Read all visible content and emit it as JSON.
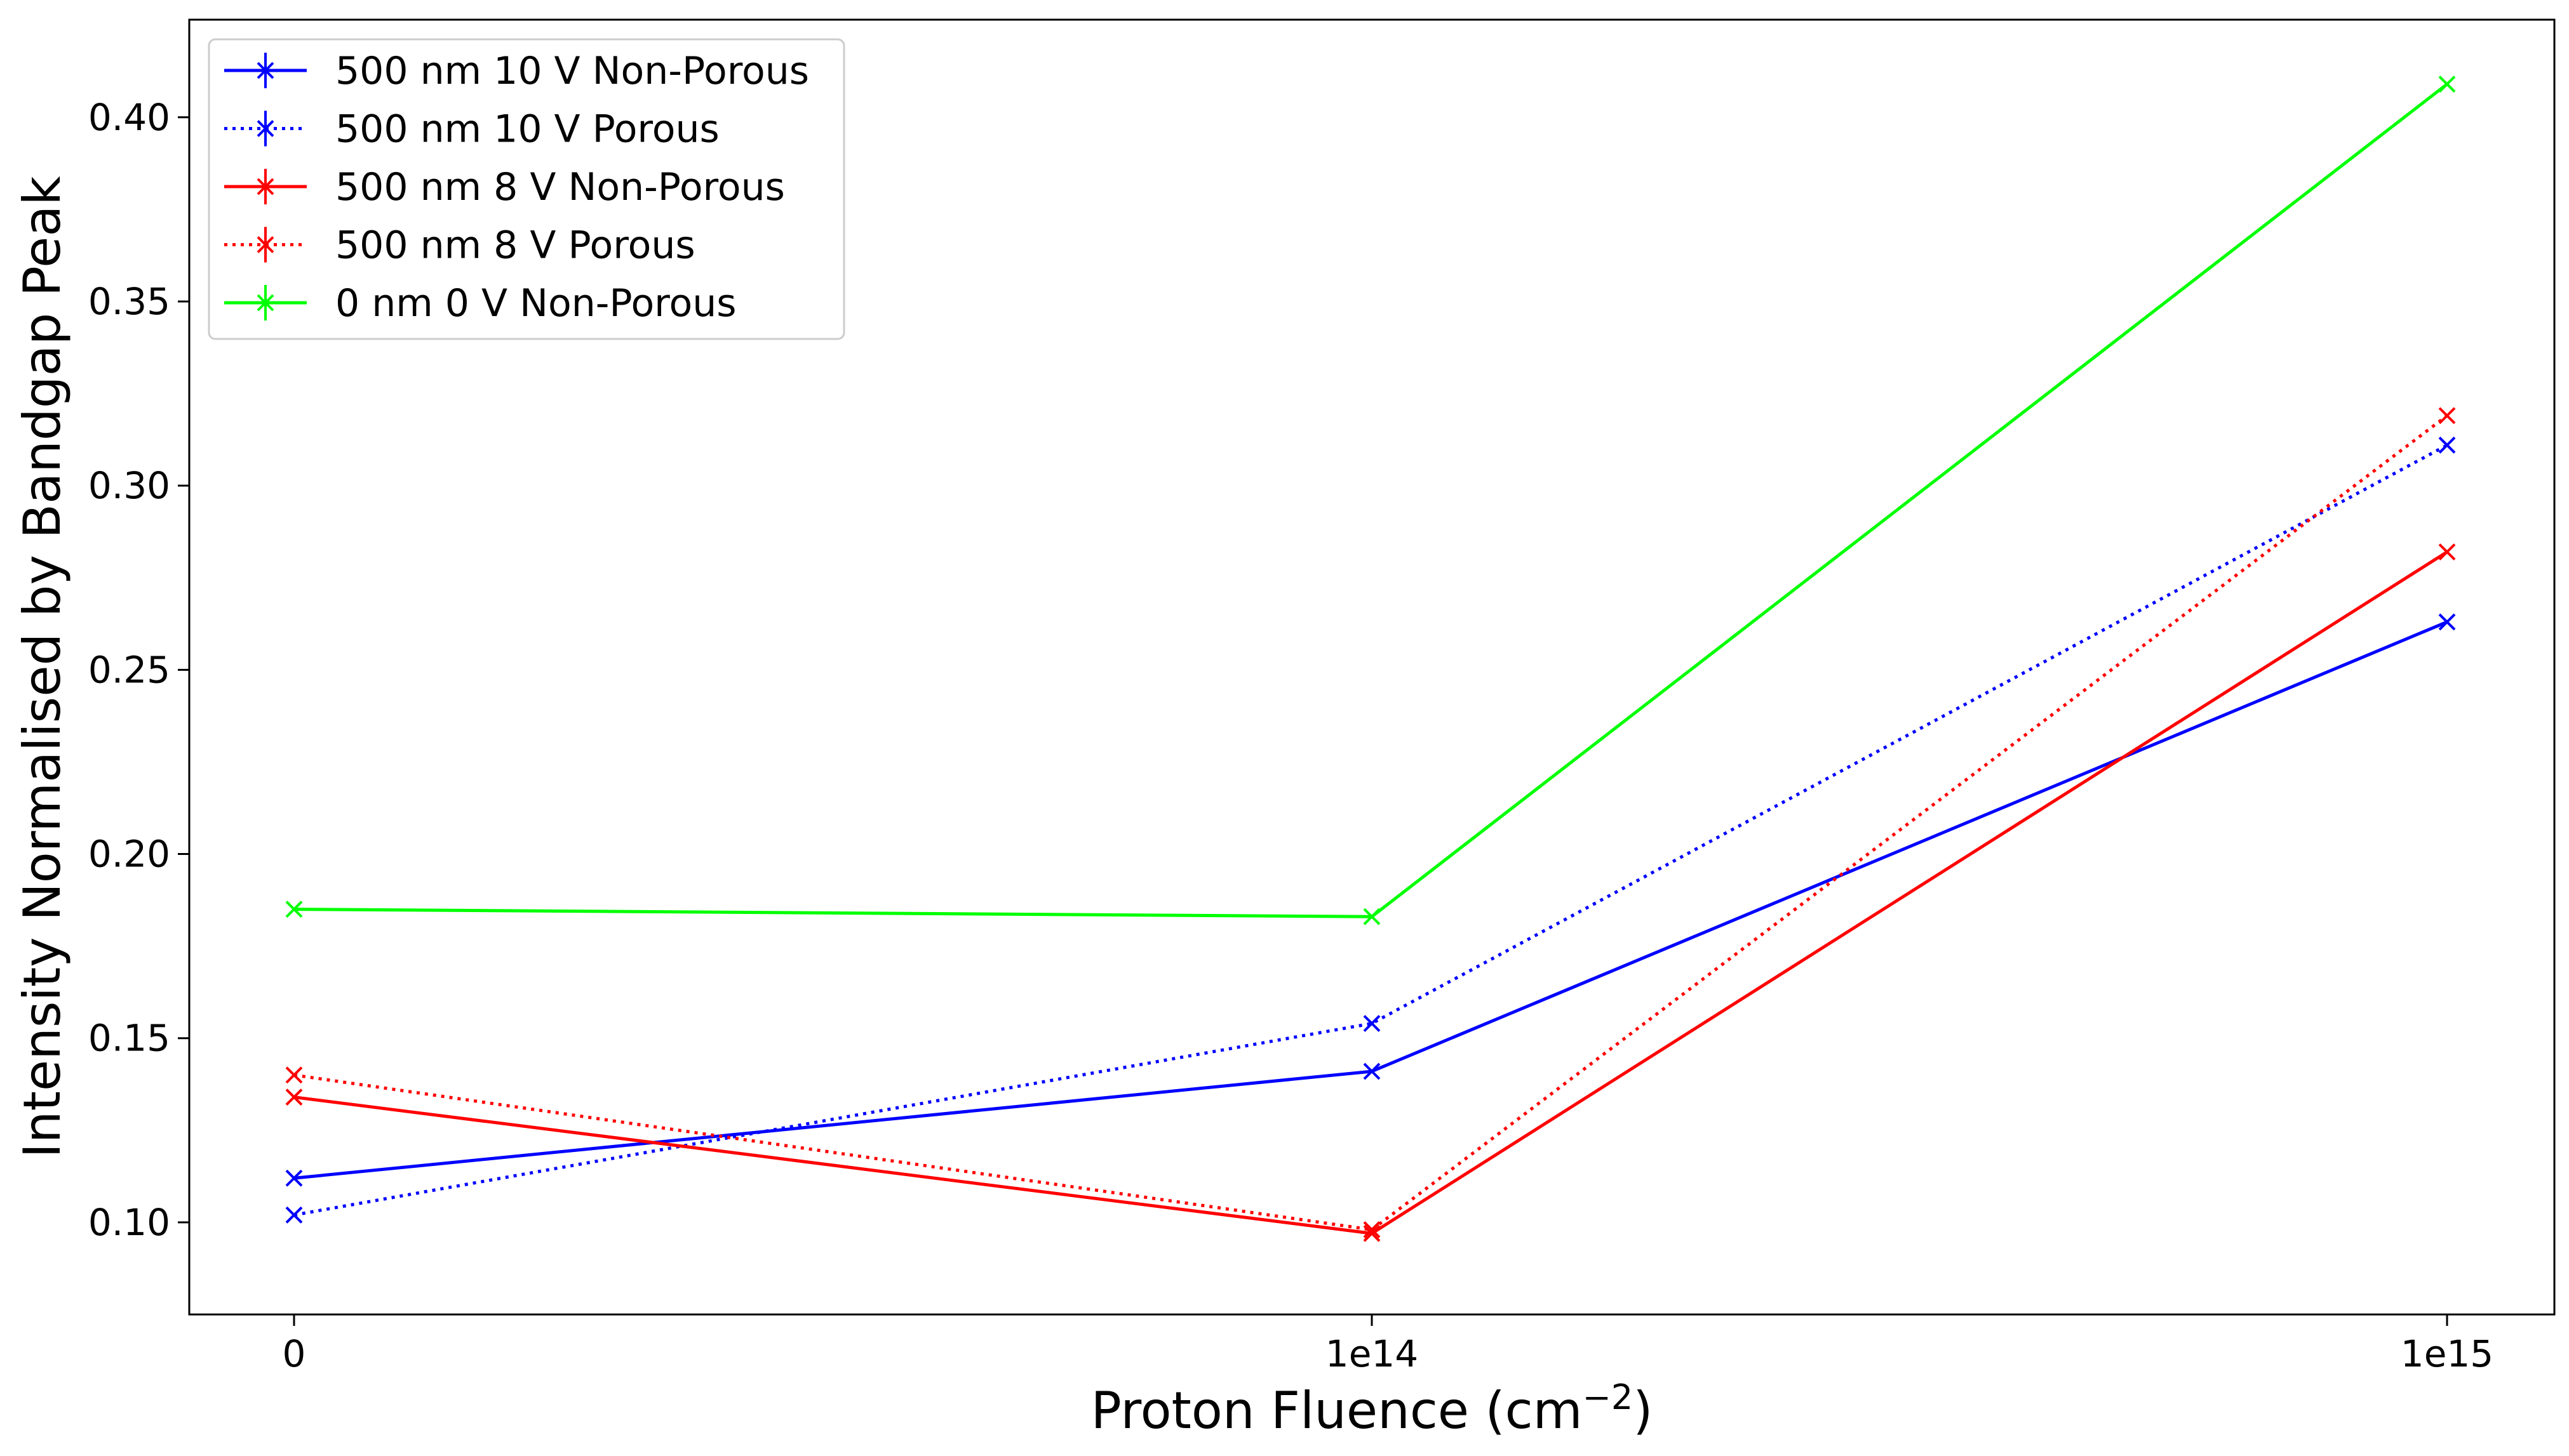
{
  "chart_data": {
    "type": "line",
    "xlabel": "Proton Fluence (cm",
    "xlabel_sup": "−2",
    "xlabel_close": ")",
    "ylabel": "Intensity Normalised by Bandgap Peak",
    "x_ticks": [
      "0",
      "1e14",
      "1e15"
    ],
    "y_ticks": [
      "0.10",
      "0.15",
      "0.20",
      "0.25",
      "0.30",
      "0.35",
      "0.40"
    ],
    "y_tick_values": [
      0.1,
      0.15,
      0.2,
      0.25,
      0.3,
      0.35,
      0.4
    ],
    "x_scale": "categorical (equal spacing)",
    "ylim": [
      0.075,
      0.4265
    ],
    "grid": false,
    "legend_position": "top-left",
    "marker": "x",
    "series": [
      {
        "name": "500 nm 10 V Non-Porous",
        "color": "#0000ff",
        "linestyle": "solid",
        "values": [
          0.112,
          0.141,
          0.263
        ]
      },
      {
        "name": "500 nm 10 V Porous",
        "color": "#0000ff",
        "linestyle": "dotted",
        "values": [
          0.102,
          0.154,
          0.311
        ]
      },
      {
        "name": "500 nm 8 V Non-Porous",
        "color": "#ff0000",
        "linestyle": "solid",
        "values": [
          0.134,
          0.097,
          0.282
        ]
      },
      {
        "name": "500 nm 8 V Porous",
        "color": "#ff0000",
        "linestyle": "dotted",
        "values": [
          0.14,
          0.098,
          0.319
        ]
      },
      {
        "name": "0 nm 0 V Non-Porous",
        "color": "#00ff00",
        "linestyle": "solid",
        "values": [
          0.185,
          0.183,
          0.409
        ]
      }
    ]
  }
}
